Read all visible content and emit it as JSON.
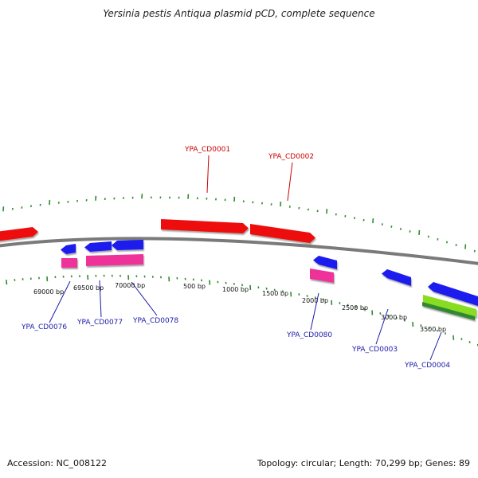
{
  "title": "Yersinia pestis Antiqua plasmid pCD, complete sequence",
  "footer": {
    "accession": "Accession: NC_008122",
    "summary": "Topology: circular; Length: 70,299 bp; Genes: 89"
  },
  "colors": {
    "backbone": "#7a7a7a",
    "ticks": "#2e8b2e",
    "forward_gene": "#ee1111",
    "reverse_gene": "#1a1aee",
    "pink_feature": "#ee3399",
    "green_feature": "#88dd22",
    "label_forward": "#cc0000",
    "label_reverse": "#1a1aaa"
  },
  "bp_labels": [
    "69000 bp",
    "69500 bp",
    "70000 bp",
    "500 bp",
    "1000 bp",
    "1500 bp",
    "2000 bp",
    "2500 bp",
    "3000 bp",
    "3500 bp"
  ],
  "gene_labels": {
    "forward": [
      "YPA_CD0001",
      "YPA_CD0002"
    ],
    "reverse": [
      "YPA_CD0076",
      "YPA_CD0077",
      "YPA_CD0078",
      "YPA_CD0080",
      "YPA_CD0003",
      "YPA_CD0004"
    ]
  }
}
